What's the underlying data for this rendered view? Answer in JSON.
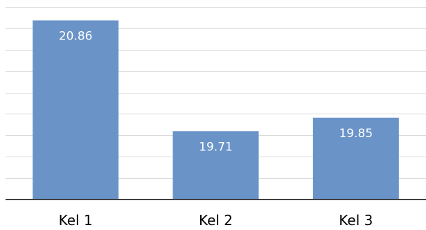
{
  "chart_data": {
    "type": "bar",
    "categories": [
      "Kel 1",
      "Kel 2",
      "Kel 3"
    ],
    "values": [
      20.86,
      19.71,
      19.85
    ],
    "data_labels": [
      "20.86",
      "19.71",
      "19.85"
    ],
    "title": "",
    "xlabel": "",
    "ylabel": "",
    "ylim": [
      19.0,
      21.0
    ],
    "grid": true,
    "legend": "none",
    "colors": {
      "bar": "#6a93c8",
      "grid": "#d9d9d9",
      "axis": "#404040",
      "label": "#ffffff"
    }
  }
}
